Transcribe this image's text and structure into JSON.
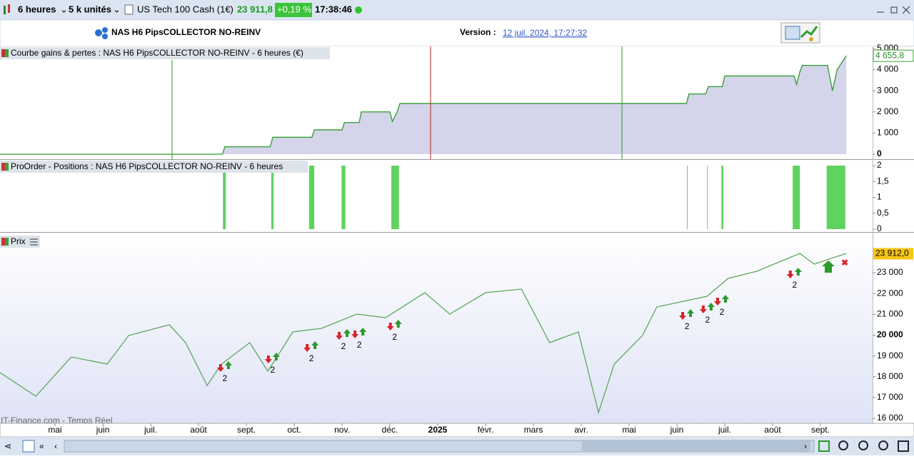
{
  "toolbar": {
    "timeframe": "6 heures",
    "units": "5 k unités",
    "instrument": "US Tech 100 Cash (1€)",
    "price": "23 911,8",
    "change": "+0,19 %",
    "time": "17:38:46"
  },
  "header": {
    "strategy": "NAS H6 PipsCOLLECTOR NO-REINV",
    "version_label": "Version :",
    "version_date": "12 juil. 2024, 17:27:32"
  },
  "x_axis": {
    "xlim": [
      -1.15,
      17.09
    ],
    "ticks": [
      {
        "value": 0,
        "label": "mai"
      },
      {
        "value": 1,
        "label": "juin"
      },
      {
        "value": 2,
        "label": "juil."
      },
      {
        "value": 3,
        "label": "août"
      },
      {
        "value": 4,
        "label": "sept."
      },
      {
        "value": 5,
        "label": "oct."
      },
      {
        "value": 6,
        "label": "nov."
      },
      {
        "value": 7,
        "label": "déc."
      },
      {
        "value": 8,
        "label": "2025"
      },
      {
        "value": 9,
        "label": "févr."
      },
      {
        "value": 10,
        "label": "mars"
      },
      {
        "value": 11,
        "label": "avr."
      },
      {
        "value": 12,
        "label": "mai"
      },
      {
        "value": 13,
        "label": "juin"
      },
      {
        "value": 14,
        "label": "juil."
      },
      {
        "value": 15,
        "label": "août"
      },
      {
        "value": 16,
        "label": "sept."
      }
    ]
  },
  "equity_panel": {
    "title": "Courbe gains & pertes : NAS H6 PipsCOLLECTOR NO-REINV - 6 heures (€)",
    "type": "line",
    "color": "#2e9b2e",
    "fill": "#d4d4ea",
    "x": [
      -1.15,
      3.5,
      3.55,
      4.5,
      4.55,
      5.37,
      5.42,
      6.0,
      6.05,
      6.36,
      6.4,
      7.0,
      7.05,
      7.15,
      7.21,
      13.2,
      13.25,
      13.6,
      13.66,
      13.95,
      14.0,
      15.45,
      15.5,
      15.57,
      15.62,
      16.15,
      16.25,
      16.35,
      16.54
    ],
    "values": [
      0,
      0,
      350,
      350,
      800,
      800,
      1150,
      1150,
      1500,
      1500,
      2000,
      2000,
      1550,
      2000,
      2400,
      2400,
      2850,
      2850,
      3200,
      3200,
      3700,
      3700,
      3300,
      3900,
      4200,
      4200,
      3000,
      4000,
      4655.8
    ],
    "ylim": [
      0,
      5100
    ],
    "yticks": [
      0,
      {
        "value": 1000,
        "label": "1 000"
      },
      {
        "value": 2000,
        "label": "2 000"
      },
      {
        "value": 3000,
        "label": "3 000"
      },
      {
        "value": 4000,
        "label": "4 000"
      },
      {
        "value": 5000,
        "label": "5 000"
      }
    ],
    "last_value": 4655.8,
    "last_label": "4 655,8"
  },
  "positions_panel": {
    "title": "ProOrder - Positions : NAS H6 PipsCOLLECTOR NO-REINV - 6 heures",
    "type": "bar",
    "color": "#5fd35f",
    "x_start": [
      3.51,
      4.52,
      5.31,
      5.99,
      7.03,
      13.21,
      13.63,
      13.93,
      15.42,
      16.13
    ],
    "x_end": [
      3.57,
      4.57,
      5.42,
      6.07,
      7.19,
      13.22,
      13.64,
      13.97,
      15.57,
      16.52
    ],
    "values": [
      2,
      2,
      2,
      2,
      2,
      2,
      2,
      2,
      2,
      2
    ],
    "ylim": [
      0,
      2
    ],
    "yticks": [
      2,
      {
        "value": 1.5,
        "label": "1,5"
      },
      1,
      {
        "value": 0.5,
        "label": "0,5"
      },
      0
    ]
  },
  "price_panel": {
    "title": "Prix",
    "type": "line",
    "color": "#5aa85a",
    "x": [
      -1.15,
      -0.4,
      0.34,
      1.09,
      1.54,
      2.39,
      2.73,
      3.18,
      3.48,
      4.07,
      4.45,
      4.97,
      5.57,
      6.31,
      6.91,
      7.73,
      8.25,
      9.0,
      9.75,
      10.34,
      10.94,
      11.36,
      11.69,
      12.28,
      12.58,
      13.63,
      14.07,
      14.67,
      15.57,
      15.87,
      16.54
    ],
    "values": [
      18196,
      17063,
      18950,
      18607,
      19980,
      20495,
      19637,
      17578,
      18607,
      19637,
      18264,
      20151,
      20323,
      21010,
      20838,
      22039,
      21010,
      22039,
      22211,
      19637,
      20151,
      16274,
      18607,
      19980,
      21353,
      21868,
      22725,
      23069,
      23927,
      23412,
      23927
    ],
    "ylim": [
      15760,
      24785
    ],
    "yticks": [
      {
        "value": 16000,
        "label": "16 000"
      },
      {
        "value": 17000,
        "label": "17 000"
      },
      {
        "value": 18000,
        "label": "18 000"
      },
      {
        "value": 19000,
        "label": "19 000"
      },
      {
        "value": 20000,
        "label": "20 000"
      },
      {
        "value": 21000,
        "label": "21 000"
      },
      {
        "value": 22000,
        "label": "22 000"
      },
      {
        "value": 23000,
        "label": "23 000"
      }
    ],
    "last_value": 23912,
    "last_label": "23 912,0",
    "trades": {
      "x": [
        3.55,
        4.55,
        5.36,
        6.03,
        6.36,
        7.1,
        13.21,
        13.64,
        13.94,
        15.46
      ],
      "y": [
        18436,
        18847,
        19397,
        19980,
        20049,
        20426,
        20941,
        21250,
        21627,
        22931
      ],
      "labels": [
        "2",
        "2",
        "2",
        "2",
        "2",
        "2",
        "2",
        "2",
        "2",
        "2"
      ]
    },
    "watermark": "IT-Finance.com - Temps Réel"
  }
}
